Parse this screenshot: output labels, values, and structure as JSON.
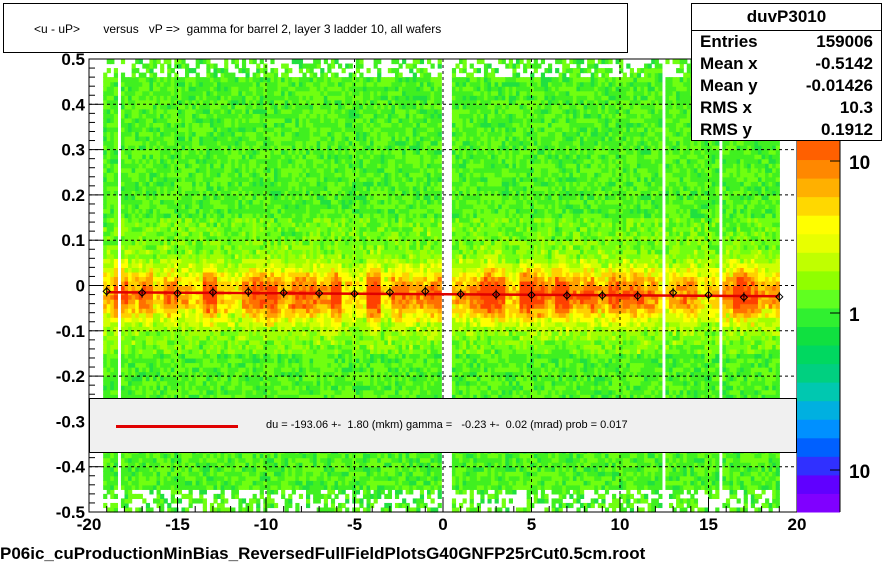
{
  "title": "<u - uP>       versus   vP =>  gamma for barrel 2, layer 3 ladder 10, all wafers",
  "stats": {
    "name": "duvP3010",
    "rows": [
      {
        "label": "Entries",
        "value": "159006"
      },
      {
        "label": "Mean x",
        "value": "-0.5142"
      },
      {
        "label": "Mean y",
        "value": "-0.01426"
      },
      {
        "label": "RMS x",
        "value": "10.3"
      },
      {
        "label": "RMS y",
        "value": "0.1912"
      }
    ]
  },
  "fit_text": "du = -193.06 +-  1.80 (mkm) gamma =   -0.23 +-  0.02 (mrad) prob = 0.017",
  "footer": "P06ic_cuProductionMinBias_ReversedFullFieldPlotsG40GNFP25rCut0.5cm.root",
  "colors": {
    "fit_line": "#e00000",
    "profile_markers": "#000000"
  },
  "chart_data": {
    "type": "heatmap",
    "x_ticks": [
      "-20",
      "-15",
      "-10",
      "-5",
      "0",
      "5",
      "10",
      "15",
      "20"
    ],
    "y_ticks": [
      "-0.5",
      "-0.4",
      "-0.3",
      "-0.2",
      "-0.1",
      "0",
      "0.1",
      "0.2",
      "0.3",
      "0.4",
      "0.5"
    ],
    "xlim": [
      -20,
      20
    ],
    "ylim": [
      -0.5,
      0.5
    ],
    "z_ticks": [
      "10",
      "1",
      "10"
    ],
    "z_scale": "log",
    "grid": true,
    "fit": {
      "intercept": -0.0193,
      "slope": -0.00023,
      "x_range": [
        -19,
        19
      ]
    },
    "profile_x": [
      -19.0,
      -17.0,
      -15.0,
      -13.0,
      -11.0,
      -9.0,
      -7.0,
      -5.0,
      -3.0,
      -1.0,
      1.0,
      3.0,
      5.0,
      7.0,
      9.0,
      11.0,
      13.0,
      15.0,
      17.0,
      19.0
    ],
    "profile_y": [
      -0.013,
      -0.016,
      -0.017,
      -0.015,
      -0.014,
      -0.016,
      -0.017,
      -0.018,
      -0.015,
      -0.013,
      -0.019,
      -0.02,
      -0.021,
      -0.022,
      -0.022,
      -0.023,
      -0.016,
      -0.021,
      -0.026,
      -0.025
    ]
  }
}
